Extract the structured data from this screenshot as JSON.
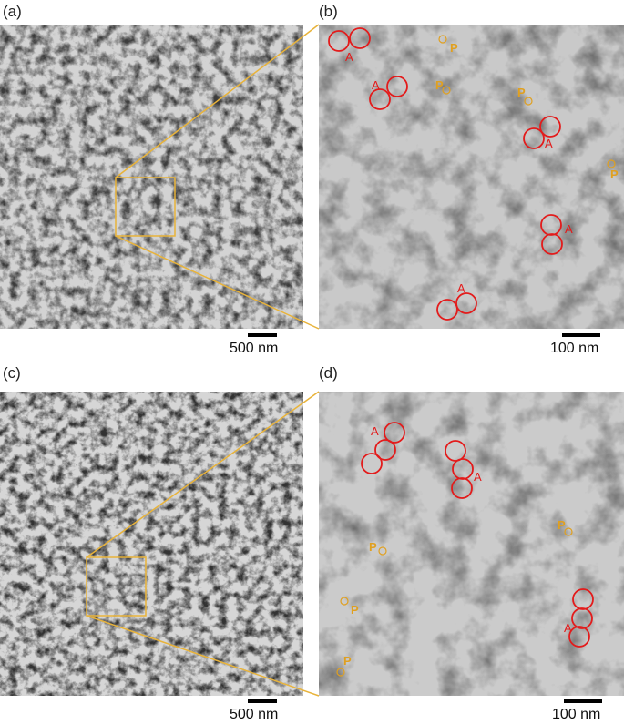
{
  "panels": {
    "a": {
      "label": "(a)",
      "scale": "500 nm"
    },
    "b": {
      "label": "(b)",
      "scale": "100 nm"
    },
    "c": {
      "label": "(c)",
      "scale": "500 nm"
    },
    "d": {
      "label": "(d)",
      "scale": "100 nm"
    }
  },
  "annotations": {
    "aggregate_label": "A",
    "particle_label": "P",
    "aggregate_color": "#e31b1b",
    "particle_color": "#e0a020",
    "zoom_color": "#e8b33a"
  }
}
